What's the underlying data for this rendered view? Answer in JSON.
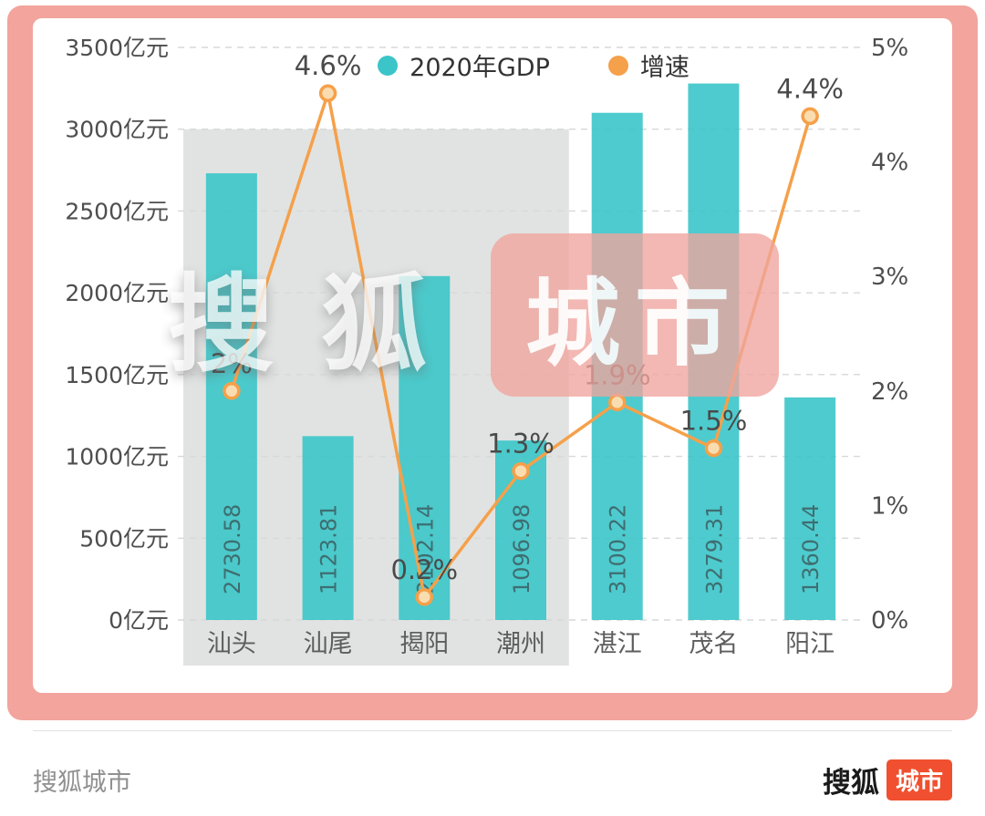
{
  "chart_data": {
    "type": "bar+line",
    "title": "",
    "categories": [
      "汕头",
      "汕尾",
      "揭阳",
      "潮州",
      "湛江",
      "茂名",
      "阳江"
    ],
    "series": [
      {
        "name": "2020年GDP",
        "type": "bar",
        "axis": "left",
        "unit": "亿元",
        "values": [
          2730.58,
          1123.81,
          2102.14,
          1096.98,
          3100.22,
          3279.31,
          1360.44
        ],
        "value_labels": [
          "2730.58",
          "1123.81",
          "2102.14",
          "1096.98",
          "3100.22",
          "3279.31",
          "1360.44"
        ]
      },
      {
        "name": "增速",
        "type": "line",
        "axis": "right",
        "unit": "%",
        "values": [
          2,
          4.6,
          0.2,
          1.3,
          1.9,
          1.5,
          4.4
        ],
        "value_labels": [
          "2%",
          "4.6%",
          "0.2%",
          "1.3%",
          "1.9%",
          "1.5%",
          "4.4%"
        ]
      }
    ],
    "left_axis": {
      "min": 0,
      "max": 3500,
      "step": 500,
      "tick_labels": [
        "3500亿元",
        "3000亿元",
        "2500亿元",
        "2000亿元",
        "1500亿元",
        "1000亿元",
        "500亿元",
        "0亿元"
      ]
    },
    "right_axis": {
      "min": 0,
      "max": 5,
      "step": 1,
      "tick_labels": [
        "5%",
        "4%",
        "3%",
        "2%",
        "1%",
        "0%"
      ]
    },
    "grid": "horizontal dashed",
    "legend_position": "top center",
    "highlight_region": {
      "start_category": "汕头",
      "end_category": "潮州",
      "start_index": 0,
      "end_index": 3,
      "top_value": 3000
    }
  },
  "legend": [
    {
      "label": "2020年GDP",
      "color": "#3bc5c9"
    },
    {
      "label": "增速",
      "color": "#f5a04a"
    }
  ],
  "watermark": {
    "text1": "搜狐",
    "text2": "城市"
  },
  "footer": {
    "left_text": "搜狐城市",
    "brand_text": "搜狐",
    "brand_badge": "城市"
  },
  "colors": {
    "bar": "#3bc5c9",
    "bar_label": "#3e6e71",
    "line": "#f5a04a",
    "marker_fill": "#f9ddb0",
    "frame_pink": "#f2a49d",
    "highlight_gray": "#dcdedd",
    "grid": "#d8d8d8",
    "axis_text": "#4e4e4e",
    "category_text": "#5d5d5d",
    "growth_label": "#4a4a4a",
    "footer_badge": "#f0502f"
  }
}
